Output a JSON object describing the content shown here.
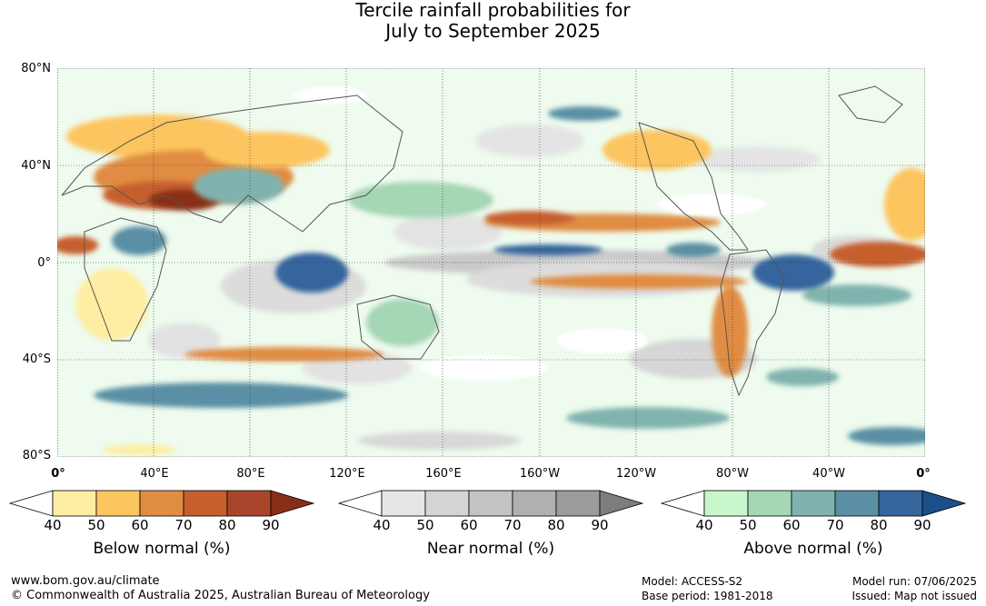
{
  "title_line1": "Tercile rainfall probabilities for",
  "title_line2": "July to September 2025",
  "lat_labels": [
    "80°N",
    "40°N",
    "0°",
    "40°S",
    "80°S"
  ],
  "lon_labels": [
    "0°",
    "40°E",
    "80°E",
    "120°E",
    "160°E",
    "160°W",
    "120°W",
    "80°W",
    "40°W",
    "0°"
  ],
  "legends": [
    {
      "title": "Below normal (%)",
      "ticks": [
        "40",
        "50",
        "60",
        "70",
        "80",
        "90"
      ],
      "colors": [
        "#ffffff",
        "#fdeea3",
        "#fdc55e",
        "#e08c42",
        "#c65e2d",
        "#a9452a",
        "#8a2d18"
      ]
    },
    {
      "title": "Near normal (%)",
      "ticks": [
        "40",
        "50",
        "60",
        "70",
        "80",
        "90"
      ],
      "colors": [
        "#ffffff",
        "#e6e6e6",
        "#d4d4d4",
        "#c3c3c3",
        "#b0b0b0",
        "#9c9c9c",
        "#7d7d7d"
      ]
    },
    {
      "title": "Above normal (%)",
      "ticks": [
        "40",
        "50",
        "60",
        "70",
        "80",
        "90"
      ],
      "colors": [
        "#ffffff",
        "#c9f7cc",
        "#a5d6b5",
        "#80b3ad",
        "#5a8fa5",
        "#34659c",
        "#1b4f8a"
      ]
    }
  ],
  "footer": {
    "website": "www.bom.gov.au/climate",
    "copyright": "© Commonwealth of Australia 2025, Australian Bureau of Meteorology",
    "model": "Model: ACCESS-S2",
    "base_period": "Base period: 1981-2018",
    "model_run": "Model run: 07/06/2025",
    "issued": "Issued: Map not issued"
  },
  "map": {
    "projection": "equirectangular",
    "lat_range": [
      -80,
      80
    ],
    "lon_range": [
      0,
      360
    ],
    "grid": true
  }
}
